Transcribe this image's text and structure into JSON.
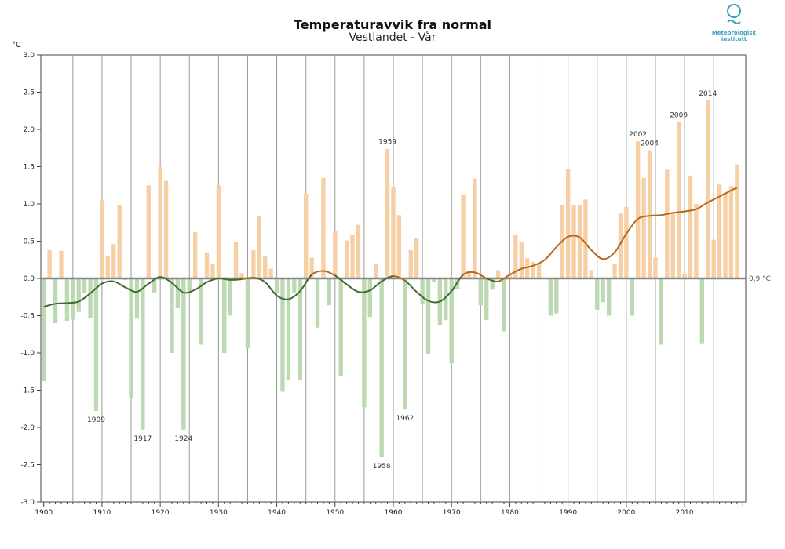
{
  "header": {
    "title": "Temperaturavvik fra normal",
    "subtitle": "Vestlandet - Vår",
    "unit": "°C"
  },
  "logo": {
    "line1": "Meteorologisk",
    "line2": "institutt"
  },
  "colors": {
    "positive_bar": "#f6cfa5",
    "negative_bar": "#bcd9b4",
    "trend_positive": "#b4661f",
    "trend_negative": "#3e6b2f",
    "zero_line": "#888888",
    "grid": "#9a9a9a",
    "logo": "#3aa0bf"
  },
  "chart_data": {
    "type": "bar",
    "title": "Temperaturavvik fra normal",
    "subtitle": "Vestlandet - Vår",
    "ylabel": "°C",
    "xlim": [
      1899.5,
      2020.5
    ],
    "ylim": [
      -3.0,
      3.0
    ],
    "y_ticks": [
      -3.0,
      -2.5,
      -2.0,
      -1.5,
      -1.0,
      -0.5,
      0.0,
      0.5,
      1.0,
      1.5,
      2.0,
      2.5,
      3.0
    ],
    "y_tick_labels": [
      "-3.0",
      "-2.5",
      "-2.0",
      "-1.5",
      "-1.0",
      "-0.5",
      "0.0",
      "0.5",
      "1.0",
      "1.5",
      "2.0",
      "2.5",
      "3.0"
    ],
    "x_ticks": [
      1900,
      1910,
      1920,
      1930,
      1940,
      1950,
      1960,
      1970,
      1980,
      1990,
      2000,
      2010
    ],
    "x_tick_labels": [
      "1900",
      "1910",
      "1920",
      "1930",
      "1940",
      "1950",
      "1960",
      "1970",
      "1980",
      "1990",
      "2000",
      "2010"
    ],
    "grid": true,
    "normal_label": "0,9 °C",
    "years": [
      1900,
      1901,
      1902,
      1903,
      1904,
      1905,
      1906,
      1907,
      1908,
      1909,
      1910,
      1911,
      1912,
      1913,
      1914,
      1915,
      1916,
      1917,
      1918,
      1919,
      1920,
      1921,
      1922,
      1923,
      1924,
      1925,
      1926,
      1927,
      1928,
      1929,
      1930,
      1931,
      1932,
      1933,
      1934,
      1935,
      1936,
      1937,
      1938,
      1939,
      1940,
      1941,
      1942,
      1943,
      1944,
      1945,
      1946,
      1947,
      1948,
      1949,
      1950,
      1951,
      1952,
      1953,
      1954,
      1955,
      1956,
      1957,
      1958,
      1959,
      1960,
      1961,
      1962,
      1963,
      1964,
      1965,
      1966,
      1967,
      1968,
      1969,
      1970,
      1971,
      1972,
      1973,
      1974,
      1975,
      1976,
      1977,
      1978,
      1979,
      1980,
      1981,
      1982,
      1983,
      1984,
      1985,
      1986,
      1987,
      1988,
      1989,
      1990,
      1991,
      1992,
      1993,
      1994,
      1995,
      1996,
      1997,
      1998,
      1999,
      2000,
      2001,
      2002,
      2003,
      2004,
      2005,
      2006,
      2007,
      2008,
      2009,
      2010,
      2011,
      2012,
      2013,
      2014,
      2015,
      2016,
      2017,
      2018,
      2019
    ],
    "values": [
      -1.38,
      0.38,
      -0.6,
      0.37,
      -0.57,
      -0.55,
      -0.45,
      -0.2,
      -0.53,
      -1.78,
      1.05,
      0.3,
      0.46,
      0.99,
      -0.02,
      -1.6,
      -0.54,
      -2.03,
      1.25,
      -0.2,
      1.5,
      1.31,
      -1.0,
      -0.4,
      -2.03,
      -0.2,
      0.62,
      -0.89,
      0.35,
      0.19,
      1.25,
      -1.0,
      -0.5,
      0.49,
      0.07,
      -0.94,
      0.38,
      0.84,
      0.3,
      0.13,
      -0.2,
      -1.52,
      -1.37,
      -0.2,
      -1.37,
      1.14,
      0.28,
      -0.66,
      1.35,
      -0.36,
      0.64,
      -1.31,
      0.51,
      0.59,
      0.72,
      -1.73,
      -0.52,
      0.2,
      -2.4,
      1.74,
      1.22,
      0.85,
      -1.76,
      0.38,
      0.54,
      -0.35,
      -1.01,
      -0.05,
      -0.63,
      -0.56,
      -1.14,
      -0.14,
      1.12,
      0.1,
      1.34,
      -0.36,
      -0.56,
      -0.15,
      0.11,
      -0.71,
      0.05,
      0.58,
      0.49,
      0.27,
      0.22,
      0.21,
      0.0,
      -0.5,
      -0.47,
      0.99,
      1.47,
      0.98,
      0.99,
      1.06,
      0.11,
      -0.42,
      -0.32,
      -0.5,
      0.2,
      0.87,
      0.96,
      -0.5,
      1.84,
      1.35,
      1.72,
      0.28,
      -0.89,
      1.46,
      0.88,
      2.1,
      0.06,
      1.38,
      1.0,
      -0.87,
      2.39,
      0.52,
      1.26,
      1.15,
      1.24,
      1.53
    ],
    "trend": [
      [
        1900,
        -0.38
      ],
      [
        1902,
        -0.34
      ],
      [
        1904,
        -0.33
      ],
      [
        1906,
        -0.31
      ],
      [
        1908,
        -0.2
      ],
      [
        1910,
        -0.07
      ],
      [
        1912,
        -0.04
      ],
      [
        1914,
        -0.12
      ],
      [
        1916,
        -0.18
      ],
      [
        1918,
        -0.07
      ],
      [
        1920,
        0.02
      ],
      [
        1922,
        -0.06
      ],
      [
        1924,
        -0.19
      ],
      [
        1926,
        -0.15
      ],
      [
        1928,
        -0.05
      ],
      [
        1930,
        0.0
      ],
      [
        1932,
        -0.02
      ],
      [
        1934,
        -0.01
      ],
      [
        1936,
        0.01
      ],
      [
        1938,
        -0.05
      ],
      [
        1940,
        -0.23
      ],
      [
        1942,
        -0.28
      ],
      [
        1944,
        -0.17
      ],
      [
        1946,
        0.05
      ],
      [
        1948,
        0.1
      ],
      [
        1950,
        0.04
      ],
      [
        1952,
        -0.08
      ],
      [
        1954,
        -0.18
      ],
      [
        1956,
        -0.16
      ],
      [
        1958,
        -0.04
      ],
      [
        1960,
        0.03
      ],
      [
        1962,
        -0.03
      ],
      [
        1964,
        -0.18
      ],
      [
        1966,
        -0.3
      ],
      [
        1968,
        -0.31
      ],
      [
        1970,
        -0.17
      ],
      [
        1972,
        0.05
      ],
      [
        1974,
        0.08
      ],
      [
        1976,
        0.0
      ],
      [
        1978,
        -0.04
      ],
      [
        1980,
        0.05
      ],
      [
        1982,
        0.13
      ],
      [
        1984,
        0.17
      ],
      [
        1986,
        0.25
      ],
      [
        1988,
        0.42
      ],
      [
        1990,
        0.56
      ],
      [
        1992,
        0.55
      ],
      [
        1994,
        0.38
      ],
      [
        1996,
        0.26
      ],
      [
        1998,
        0.35
      ],
      [
        2000,
        0.6
      ],
      [
        2002,
        0.8
      ],
      [
        2004,
        0.84
      ],
      [
        2006,
        0.85
      ],
      [
        2008,
        0.88
      ],
      [
        2010,
        0.9
      ],
      [
        2012,
        0.93
      ],
      [
        2014,
        1.02
      ],
      [
        2016,
        1.1
      ],
      [
        2018,
        1.18
      ],
      [
        2019,
        1.22
      ]
    ],
    "annotations": [
      {
        "year": 1909,
        "value": -1.78,
        "label": "1909"
      },
      {
        "year": 1917,
        "value": -2.03,
        "label": "1917"
      },
      {
        "year": 1924,
        "value": -2.03,
        "label": "1924"
      },
      {
        "year": 1958,
        "value": -2.4,
        "label": "1958"
      },
      {
        "year": 1959,
        "value": 1.74,
        "label": "1959"
      },
      {
        "year": 1962,
        "value": -1.76,
        "label": "1962"
      },
      {
        "year": 2002,
        "value": 1.84,
        "label": "2002"
      },
      {
        "year": 2004,
        "value": 1.72,
        "label": "2004"
      },
      {
        "year": 2009,
        "value": 2.1,
        "label": "2009"
      },
      {
        "year": 2014,
        "value": 2.39,
        "label": "2014"
      }
    ]
  }
}
